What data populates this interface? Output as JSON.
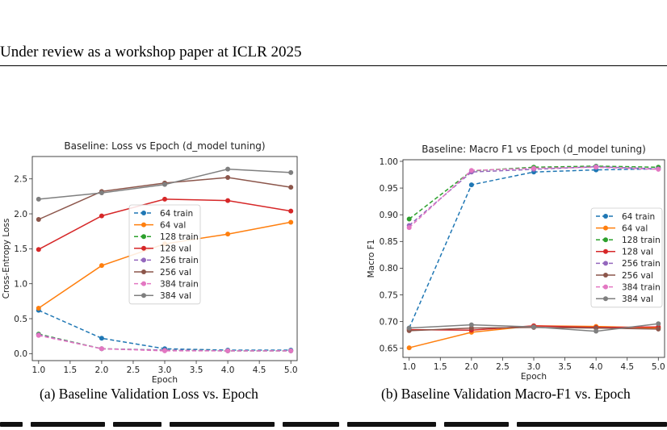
{
  "header": {
    "text": "Under review as a workshop paper at ICLR 2025"
  },
  "captions": {
    "left": "(a) Baseline Validation Loss vs. Epoch",
    "right": "(b) Baseline Validation Macro-F1 vs. Epoch"
  },
  "chart_data": [
    {
      "type": "line",
      "title": "Baseline: Loss vs Epoch (d_model tuning)",
      "xlabel": "Epoch",
      "ylabel": "Cross-Entropy Loss",
      "xlim": [
        0.9,
        5.1
      ],
      "ylim": [
        -0.1,
        2.82
      ],
      "xticks": [
        "1.0",
        "1.5",
        "2.0",
        "2.5",
        "3.0",
        "3.5",
        "4.0",
        "4.5",
        "5.0"
      ],
      "yticks": [
        "0.0",
        "0.5",
        "1.0",
        "1.5",
        "2.0",
        "2.5"
      ],
      "grid": false,
      "legend_position": "center",
      "x": [
        1,
        2,
        3,
        4,
        5
      ],
      "series": [
        {
          "name": "64 train",
          "color": "#1f77b4",
          "dashed": true,
          "values": [
            0.62,
            0.22,
            0.07,
            0.05,
            0.05
          ]
        },
        {
          "name": "64 val",
          "color": "#ff7f0e",
          "dashed": false,
          "values": [
            0.65,
            1.26,
            1.57,
            1.71,
            1.88
          ]
        },
        {
          "name": "128 train",
          "color": "#2ca02c",
          "dashed": true,
          "values": [
            0.28,
            0.07,
            0.05,
            0.04,
            0.04
          ]
        },
        {
          "name": "128 val",
          "color": "#d62728",
          "dashed": false,
          "values": [
            1.49,
            1.97,
            2.21,
            2.19,
            2.04
          ]
        },
        {
          "name": "256 train",
          "color": "#9467bd",
          "dashed": true,
          "values": [
            0.27,
            0.07,
            0.05,
            0.04,
            0.04
          ]
        },
        {
          "name": "256 val",
          "color": "#8c564b",
          "dashed": false,
          "values": [
            1.92,
            2.32,
            2.44,
            2.52,
            2.38
          ]
        },
        {
          "name": "384 train",
          "color": "#e377c2",
          "dashed": true,
          "values": [
            0.26,
            0.07,
            0.04,
            0.04,
            0.04
          ]
        },
        {
          "name": "384 val",
          "color": "#7f7f7f",
          "dashed": false,
          "values": [
            2.21,
            2.3,
            2.42,
            2.64,
            2.59
          ]
        }
      ]
    },
    {
      "type": "line",
      "title": "Baseline: Macro F1 vs Epoch (d_model tuning)",
      "xlabel": "Epoch",
      "ylabel": "Macro F1",
      "xlim": [
        0.9,
        5.1
      ],
      "ylim": [
        0.633,
        1.003
      ],
      "xticks": [
        "1.0",
        "1.5",
        "2.0",
        "2.5",
        "3.0",
        "3.5",
        "4.0",
        "4.5",
        "5.0"
      ],
      "yticks": [
        "0.65",
        "0.70",
        "0.75",
        "0.80",
        "0.85",
        "0.90",
        "0.95",
        "1.00"
      ],
      "grid": false,
      "legend_position": "center-right",
      "x": [
        1,
        2,
        3,
        4,
        5
      ],
      "series": [
        {
          "name": "64 train",
          "color": "#1f77b4",
          "dashed": true,
          "values": [
            0.688,
            0.956,
            0.98,
            0.984,
            0.986
          ]
        },
        {
          "name": "64 val",
          "color": "#ff7f0e",
          "dashed": false,
          "values": [
            0.651,
            0.68,
            0.692,
            0.691,
            0.688
          ]
        },
        {
          "name": "128 train",
          "color": "#2ca02c",
          "dashed": true,
          "values": [
            0.892,
            0.982,
            0.989,
            0.991,
            0.989
          ]
        },
        {
          "name": "128 val",
          "color": "#d62728",
          "dashed": false,
          "values": [
            0.685,
            0.684,
            0.692,
            0.689,
            0.69
          ]
        },
        {
          "name": "256 train",
          "color": "#9467bd",
          "dashed": true,
          "values": [
            0.88,
            0.98,
            0.985,
            0.99,
            0.986
          ]
        },
        {
          "name": "256 val",
          "color": "#8c564b",
          "dashed": false,
          "values": [
            0.683,
            0.688,
            0.689,
            0.688,
            0.686
          ]
        },
        {
          "name": "384 train",
          "color": "#e377c2",
          "dashed": true,
          "values": [
            0.876,
            0.983,
            0.987,
            0.989,
            0.985
          ]
        },
        {
          "name": "384 val",
          "color": "#7f7f7f",
          "dashed": false,
          "values": [
            0.688,
            0.694,
            0.69,
            0.682,
            0.696
          ]
        }
      ]
    }
  ]
}
